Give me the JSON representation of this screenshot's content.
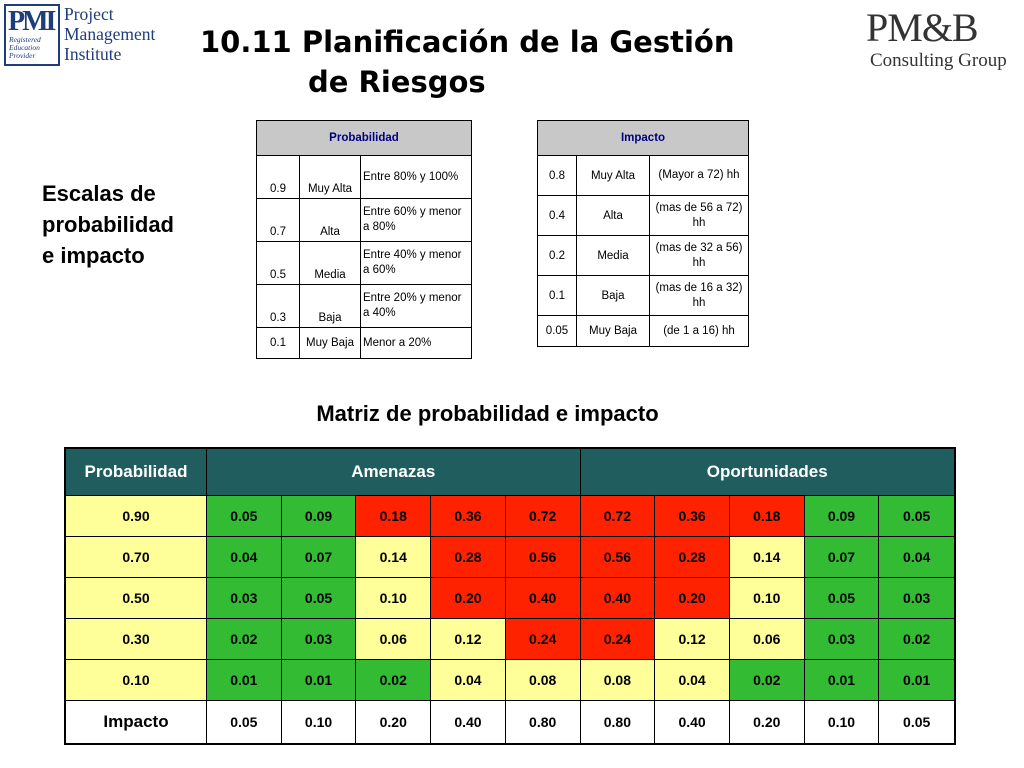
{
  "pmi_logo": {
    "mark": "PMI",
    "registered": [
      "Registered",
      "Education",
      "Provider"
    ],
    "name": [
      "Project",
      "Management",
      "Institute"
    ]
  },
  "title": {
    "line1": "10.11 Planificación de la Gestión",
    "line2": "de Riesgos"
  },
  "pmb_logo": {
    "name": "PM&B",
    "subtitle": "Consulting Group"
  },
  "side_heading": [
    "Escalas de",
    "probabilidad",
    "e impacto"
  ],
  "probability_table": {
    "header": "Probabilidad",
    "rows": [
      {
        "value": "0.9",
        "level": "Muy Alta",
        "range": "Entre 80% y 100%"
      },
      {
        "value": "0.7",
        "level": "Alta",
        "range": "Entre 60% y menor a 80%"
      },
      {
        "value": "0.5",
        "level": "Media",
        "range": "Entre 40% y menor a 60%"
      },
      {
        "value": "0.3",
        "level": "Baja",
        "range": "Entre 20% y menor a 40%"
      },
      {
        "value": "0.1",
        "level": "Muy Baja",
        "range": "Menor a 20%"
      }
    ]
  },
  "impact_table": {
    "header": "Impacto",
    "rows": [
      {
        "value": "0.8",
        "level": "Muy Alta",
        "range": "(Mayor a 72) hh"
      },
      {
        "value": "0.4",
        "level": "Alta",
        "range": "(mas de 56 a 72) hh"
      },
      {
        "value": "0.2",
        "level": "Media",
        "range": "(mas de 32 a 56) hh"
      },
      {
        "value": "0.1",
        "level": "Baja",
        "range": "(mas de 16 a 32) hh"
      },
      {
        "value": "0.05",
        "level": "Muy Baja",
        "range": "(de 1 a 16) hh"
      }
    ]
  },
  "matrix": {
    "title": "Matriz de probabilidad e impacto",
    "headers": {
      "probability": "Probabilidad",
      "threats": "Amenazas",
      "opportunities": "Oportunidades"
    },
    "colors": {
      "green": "#33bb33",
      "yellow": "#ffff99",
      "red": "#ff2200",
      "header": "#205d5e"
    },
    "rows": [
      {
        "prob": "0.90",
        "cells": [
          "0.05",
          "0.09",
          "0.18",
          "0.36",
          "0.72",
          "0.72",
          "0.36",
          "0.18",
          "0.09",
          "0.05"
        ],
        "colors": [
          "g",
          "g",
          "r",
          "r",
          "r",
          "r",
          "r",
          "r",
          "g",
          "g"
        ]
      },
      {
        "prob": "0.70",
        "cells": [
          "0.04",
          "0.07",
          "0.14",
          "0.28",
          "0.56",
          "0.56",
          "0.28",
          "0.14",
          "0.07",
          "0.04"
        ],
        "colors": [
          "g",
          "g",
          "y",
          "r",
          "r",
          "r",
          "r",
          "y",
          "g",
          "g"
        ]
      },
      {
        "prob": "0.50",
        "cells": [
          "0.03",
          "0.05",
          "0.10",
          "0.20",
          "0.40",
          "0.40",
          "0.20",
          "0.10",
          "0.05",
          "0.03"
        ],
        "colors": [
          "g",
          "g",
          "y",
          "r",
          "r",
          "r",
          "r",
          "y",
          "g",
          "g"
        ]
      },
      {
        "prob": "0.30",
        "cells": [
          "0.02",
          "0.03",
          "0.06",
          "0.12",
          "0.24",
          "0.24",
          "0.12",
          "0.06",
          "0.03",
          "0.02"
        ],
        "colors": [
          "g",
          "g",
          "y",
          "y",
          "r",
          "r",
          "y",
          "y",
          "g",
          "g"
        ]
      },
      {
        "prob": "0.10",
        "cells": [
          "0.01",
          "0.01",
          "0.02",
          "0.04",
          "0.08",
          "0.08",
          "0.04",
          "0.02",
          "0.01",
          "0.01"
        ],
        "colors": [
          "g",
          "g",
          "g",
          "y",
          "y",
          "y",
          "y",
          "g",
          "g",
          "g"
        ]
      }
    ],
    "impact_label": "Impacto",
    "impact_values": [
      "0.05",
      "0.10",
      "0.20",
      "0.40",
      "0.80",
      "0.80",
      "0.40",
      "0.20",
      "0.10",
      "0.05"
    ]
  }
}
